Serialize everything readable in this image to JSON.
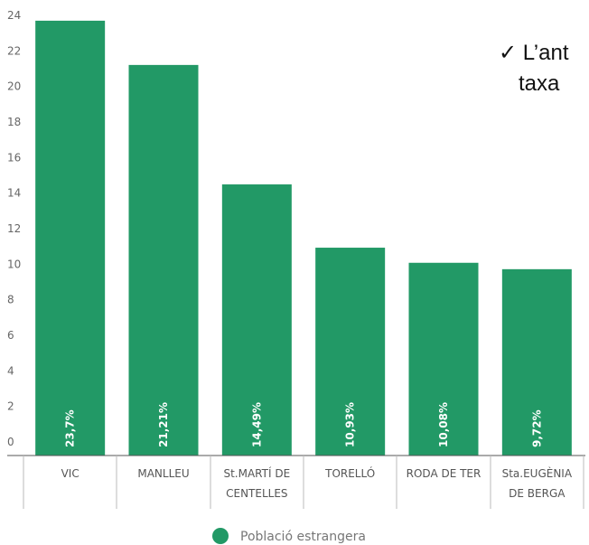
{
  "chart_data": {
    "type": "bar",
    "categories": [
      [
        "VIC"
      ],
      [
        "MANLLEU"
      ],
      [
        "St.MARTÍ DE",
        "CENTELLES"
      ],
      [
        "TORELLÓ"
      ],
      [
        "RODA DE TER"
      ],
      [
        "Sta.EUGÈNIA",
        "DE BERGA"
      ]
    ],
    "series": [
      {
        "name": "Població estrangera",
        "values": [
          23.7,
          21.21,
          14.49,
          10.93,
          10.08,
          9.72
        ],
        "data_labels": [
          "23,7%",
          "21,21%",
          "14,49%",
          "10,93%",
          "10,08%",
          "9,72%"
        ],
        "color": "#229966"
      }
    ],
    "y_ticks": [
      "0",
      "2",
      "4",
      "6",
      "8",
      "10",
      "12",
      "14",
      "16",
      "18",
      "20",
      "22",
      "24"
    ],
    "ylim": [
      0,
      24
    ],
    "grid": false,
    "legend_position": "bottom"
  },
  "overlay_text": {
    "line1": "✓ L’ant",
    "line2": "taxa"
  }
}
